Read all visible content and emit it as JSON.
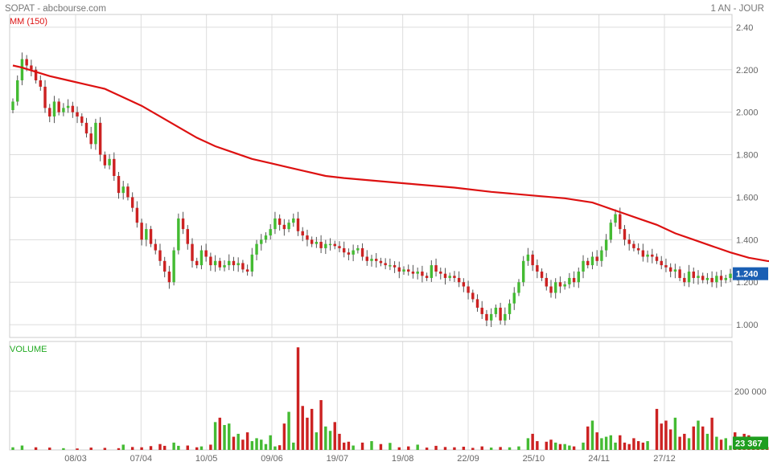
{
  "header": {
    "title": "SOPAT - abcbourse.com",
    "period": "1 AN - JOUR"
  },
  "chart_data": {
    "type": "candlestick",
    "colors": {
      "up": "#44bb33",
      "down": "#cc2222",
      "ma": "#dd1111",
      "grid": "#dddddd",
      "last_price_badge": "#1a5fb4",
      "last_volume_badge": "#1f9e1f",
      "volume_label": "#22aa22"
    },
    "price_axis": {
      "ticks": [
        1.0,
        1.2,
        1.4,
        1.6,
        1.8,
        2.0,
        2.2,
        2.4
      ],
      "tick_labels": [
        "1.000",
        "1.200",
        "1.400",
        "1.600",
        "1.800",
        "2.000",
        "2.200",
        "2.40"
      ],
      "ylim": [
        0.94,
        2.46
      ]
    },
    "x_tick_labels": [
      "08/03",
      "07/04",
      "10/05",
      "09/06",
      "19/07",
      "19/08",
      "22/09",
      "25/10",
      "24/11",
      "27/12"
    ],
    "moving_average": {
      "label": "MM (150)",
      "points": [
        [
          0,
          2.22
        ],
        [
          2,
          2.21
        ],
        [
          5,
          2.19
        ],
        [
          8,
          2.17
        ],
        [
          12,
          2.15
        ],
        [
          16,
          2.13
        ],
        [
          20,
          2.11
        ],
        [
          22,
          2.09
        ],
        [
          25,
          2.06
        ],
        [
          28,
          2.03
        ],
        [
          32,
          1.98
        ],
        [
          36,
          1.93
        ],
        [
          40,
          1.88
        ],
        [
          44,
          1.84
        ],
        [
          48,
          1.81
        ],
        [
          52,
          1.78
        ],
        [
          56,
          1.76
        ],
        [
          60,
          1.74
        ],
        [
          64,
          1.72
        ],
        [
          68,
          1.7
        ],
        [
          72,
          1.69
        ],
        [
          80,
          1.675
        ],
        [
          88,
          1.66
        ],
        [
          96,
          1.645
        ],
        [
          104,
          1.625
        ],
        [
          112,
          1.61
        ],
        [
          120,
          1.595
        ],
        [
          126,
          1.575
        ],
        [
          128,
          1.56
        ],
        [
          132,
          1.53
        ],
        [
          136,
          1.5
        ],
        [
          140,
          1.47
        ],
        [
          144,
          1.43
        ],
        [
          148,
          1.4
        ],
        [
          152,
          1.37
        ],
        [
          156,
          1.34
        ],
        [
          160,
          1.315
        ],
        [
          164,
          1.3
        ],
        [
          168,
          1.293
        ],
        [
          180,
          1.29
        ],
        [
          190,
          1.29
        ],
        [
          206,
          1.282
        ],
        [
          212,
          1.28
        ]
      ]
    },
    "candles_close": [
      2.05,
      2.15,
      2.25,
      2.22,
      2.2,
      2.15,
      2.12,
      2.02,
      1.98,
      2.05,
      2.0,
      2.02,
      2.03,
      2.0,
      1.98,
      1.95,
      1.9,
      1.85,
      1.95,
      1.8,
      1.75,
      1.78,
      1.7,
      1.62,
      1.65,
      1.6,
      1.55,
      1.48,
      1.4,
      1.45,
      1.38,
      1.35,
      1.3,
      1.25,
      1.2,
      1.35,
      1.5,
      1.45,
      1.38,
      1.3,
      1.28,
      1.35,
      1.32,
      1.28,
      1.3,
      1.27,
      1.28,
      1.3,
      1.28,
      1.29,
      1.26,
      1.25,
      1.33,
      1.38,
      1.4,
      1.42,
      1.45,
      1.5,
      1.47,
      1.45,
      1.48,
      1.5,
      1.44,
      1.42,
      1.4,
      1.38,
      1.39,
      1.36,
      1.38,
      1.38,
      1.37,
      1.36,
      1.34,
      1.33,
      1.35,
      1.36,
      1.32,
      1.3,
      1.31,
      1.3,
      1.29,
      1.28,
      1.28,
      1.27,
      1.25,
      1.26,
      1.25,
      1.24,
      1.25,
      1.23,
      1.22,
      1.28,
      1.25,
      1.24,
      1.22,
      1.23,
      1.22,
      1.2,
      1.18,
      1.15,
      1.12,
      1.08,
      1.05,
      1.02,
      1.05,
      1.08,
      1.02,
      1.05,
      1.1,
      1.15,
      1.2,
      1.3,
      1.33,
      1.28,
      1.25,
      1.22,
      1.18,
      1.15,
      1.2,
      1.18,
      1.19,
      1.22,
      1.2,
      1.25,
      1.3,
      1.28,
      1.32,
      1.3,
      1.35,
      1.4,
      1.48,
      1.52,
      1.45,
      1.4,
      1.38,
      1.36,
      1.35,
      1.32,
      1.33,
      1.32,
      1.3,
      1.28,
      1.27,
      1.25,
      1.26,
      1.22,
      1.2,
      1.25,
      1.22,
      1.23,
      1.21,
      1.22,
      1.2,
      1.23,
      1.21,
      1.22,
      1.24
    ],
    "volume_axis": {
      "ticks": [
        200000
      ],
      "tick_labels": [
        "200 000"
      ],
      "ylim": [
        0,
        370000
      ]
    },
    "volume_label": "VOLUME",
    "volumes_nonzero": [
      [
        0,
        9000
      ],
      [
        2,
        15000
      ],
      [
        5,
        9000
      ],
      [
        8,
        8000
      ],
      [
        11,
        6000
      ],
      [
        14,
        5000
      ],
      [
        17,
        8000
      ],
      [
        20,
        7000
      ],
      [
        23,
        6000
      ],
      [
        24,
        18000
      ],
      [
        26,
        10000
      ],
      [
        28,
        9000
      ],
      [
        30,
        13000
      ],
      [
        32,
        20000
      ],
      [
        33,
        14000
      ],
      [
        35,
        25000
      ],
      [
        36,
        14000
      ],
      [
        38,
        15000
      ],
      [
        40,
        9000
      ],
      [
        41,
        12000
      ],
      [
        43,
        18000
      ],
      [
        44,
        95000
      ],
      [
        45,
        110000
      ],
      [
        46,
        85000
      ],
      [
        47,
        90000
      ],
      [
        48,
        45000
      ],
      [
        49,
        55000
      ],
      [
        50,
        35000
      ],
      [
        51,
        60000
      ],
      [
        52,
        30000
      ],
      [
        53,
        40000
      ],
      [
        54,
        35000
      ],
      [
        55,
        20000
      ],
      [
        56,
        50000
      ],
      [
        57,
        12000
      ],
      [
        58,
        16000
      ],
      [
        59,
        90000
      ],
      [
        60,
        130000
      ],
      [
        61,
        25000
      ],
      [
        62,
        350000
      ],
      [
        63,
        150000
      ],
      [
        64,
        110000
      ],
      [
        65,
        140000
      ],
      [
        66,
        60000
      ],
      [
        67,
        170000
      ],
      [
        68,
        80000
      ],
      [
        69,
        65000
      ],
      [
        70,
        95000
      ],
      [
        71,
        55000
      ],
      [
        72,
        25000
      ],
      [
        73,
        28000
      ],
      [
        74,
        15000
      ],
      [
        76,
        25000
      ],
      [
        78,
        30000
      ],
      [
        80,
        20000
      ],
      [
        82,
        24000
      ],
      [
        84,
        9000
      ],
      [
        86,
        12000
      ],
      [
        88,
        18000
      ],
      [
        90,
        8000
      ],
      [
        92,
        14000
      ],
      [
        94,
        10000
      ],
      [
        96,
        9000
      ],
      [
        98,
        11000
      ],
      [
        100,
        7000
      ],
      [
        102,
        12000
      ],
      [
        104,
        8000
      ],
      [
        106,
        10000
      ],
      [
        108,
        9000
      ],
      [
        110,
        12000
      ],
      [
        112,
        40000
      ],
      [
        113,
        55000
      ],
      [
        114,
        30000
      ],
      [
        116,
        28000
      ],
      [
        117,
        35000
      ],
      [
        118,
        25000
      ],
      [
        119,
        20000
      ],
      [
        120,
        20000
      ],
      [
        121,
        15000
      ],
      [
        122,
        12000
      ],
      [
        124,
        25000
      ],
      [
        125,
        80000
      ],
      [
        126,
        100000
      ],
      [
        127,
        60000
      ],
      [
        128,
        40000
      ],
      [
        129,
        45000
      ],
      [
        130,
        50000
      ],
      [
        131,
        25000
      ],
      [
        132,
        50000
      ],
      [
        133,
        25000
      ],
      [
        134,
        20000
      ],
      [
        135,
        40000
      ],
      [
        136,
        30000
      ],
      [
        137,
        25000
      ],
      [
        138,
        30000
      ],
      [
        140,
        140000
      ],
      [
        141,
        90000
      ],
      [
        142,
        100000
      ],
      [
        143,
        70000
      ],
      [
        144,
        110000
      ],
      [
        145,
        45000
      ],
      [
        146,
        55000
      ],
      [
        147,
        40000
      ],
      [
        148,
        80000
      ],
      [
        149,
        100000
      ],
      [
        150,
        80000
      ],
      [
        151,
        55000
      ],
      [
        152,
        110000
      ],
      [
        153,
        45000
      ],
      [
        154,
        35000
      ],
      [
        155,
        40000
      ],
      [
        156,
        15000
      ],
      [
        157,
        60000
      ],
      [
        158,
        45000
      ],
      [
        159,
        55000
      ],
      [
        160,
        50000
      ],
      [
        161,
        20000
      ],
      [
        162,
        10000
      ],
      [
        163,
        15000
      ],
      [
        164,
        10000
      ],
      [
        165,
        12000
      ],
      [
        166,
        8000
      ],
      [
        167,
        14000
      ],
      [
        168,
        8000
      ],
      [
        169,
        10000
      ],
      [
        170,
        12000
      ],
      [
        171,
        9000
      ],
      [
        172,
        15000
      ],
      [
        173,
        8000
      ],
      [
        174,
        9000
      ],
      [
        175,
        12000
      ],
      [
        176,
        14000
      ],
      [
        177,
        23367
      ]
    ],
    "last_price": "1.240",
    "last_volume": "23 367"
  }
}
